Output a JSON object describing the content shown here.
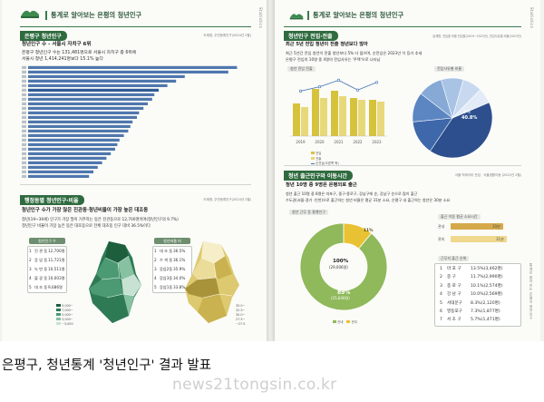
{
  "left_page": {
    "header_title": "통계로 알아보는 은평의 청년인구",
    "section1": {
      "title": "은평구 청년인구",
      "source": "도제명, 주민등록인구(2024년 2월)",
      "heading": "청년인구 수 - 서울시 자치구 6위",
      "lines": [
        "은평구 청년인구 수는 131,481명으로 서울시 자치구 중 6위에",
        "서울시 청년 1,414,241명보다 15.1% 높다"
      ],
      "bars": [
        96,
        92,
        72,
        68,
        64,
        60,
        58,
        57,
        55,
        53,
        51,
        50,
        48,
        47,
        46,
        44,
        42,
        41,
        40,
        38,
        36,
        34,
        32,
        30,
        28
      ],
      "bar_color": "#4f77ad",
      "highlight_color": "#2f5c96"
    },
    "section2": {
      "title": "행정동별 청년인구·비율",
      "source": "도제명, 주민등록인구(2024년 2월)",
      "heading": "청년인구 수가 가장 많은 진관동·청년비율이 가장 높은 대조동",
      "lines": [
        "청년(19~39세) 인구가 가장 많이 거주하는 동은 진관동으로 12,700명이며(청년인구의 9.7%)",
        "청년인구 비율이 가장 높은 동은 대조동으로 전체 대조동 인구 대비 36.5%이다"
      ],
      "ranking_headers": [
        "청년인구 수",
        "청년비율 비"
      ],
      "ranking_left": [
        {
          "n": "1",
          "name": "진 관 동",
          "val": "12,700명"
        },
        {
          "n": "2",
          "name": "응 암 동",
          "val": "11,721명"
        },
        {
          "n": "3",
          "name": "녹 번 동",
          "val": "10,511명"
        },
        {
          "n": "4",
          "name": "불 광 동",
          "val": "10,003명"
        },
        {
          "n": "5",
          "name": "대 조 동",
          "val": "9,686명"
        }
      ],
      "ranking_right": [
        {
          "n": "1",
          "name": "대 조 동",
          "val": "36.5%"
        },
        {
          "n": "2",
          "name": "수 색 동",
          "val": "36.1%"
        },
        {
          "n": "3",
          "name": "응암2동",
          "val": "35.9%"
        },
        {
          "n": "4",
          "name": "응암3동",
          "val": "34.0%"
        },
        {
          "n": "5",
          "name": "응암1동",
          "val": "33.8%"
        }
      ],
      "map_colors_green": [
        "#1d5e3c",
        "#2e7a55",
        "#4c9a74",
        "#86c1a2",
        "#c7e2d3"
      ],
      "map_colors_yellow": [
        "#a8923a",
        "#c9b24f",
        "#ddc96f",
        "#ebdc99",
        "#f5eec8"
      ]
    },
    "side_tab": "Statistics"
  },
  "right_page": {
    "header_title": "통계로 알아보는 은평의 청년인구",
    "section1": {
      "title": "청년인구 전입·전출",
      "source": "놀제명, 전입출 비율 전입출(2019~2023년), 전입사유별 비율(2023년)",
      "heading": "최근 5년 전입 청년이 전출 청년보다 많아",
      "lines": [
        "최근 5년간 전입 청년이 전출 청년보다 5% 더 많으며, 순전입은 2023년 이 등가 추세",
        "은평구 전입의 10명 중 4명의 전입사유는 '주택'으로 나타남"
      ],
      "chart_label_left": "청년 전입 전출",
      "chart_label_right": "전입사유별 비율",
      "years": [
        "2019",
        "2020",
        "2021",
        "2022",
        "2023"
      ],
      "in_values": [
        18,
        26,
        25,
        21,
        20
      ],
      "out_values": [
        16,
        21,
        22,
        20,
        19
      ],
      "net_line": [
        8,
        12,
        18,
        9,
        16
      ],
      "bar_in_color": "#d7c23c",
      "bar_out_color": "#e7d97a",
      "line_color": "#3c6fb0",
      "legend": [
        "전입",
        "전출",
        "순전입(오른쪽 축)"
      ],
      "pie_center": "주택",
      "pie_pct": "40.8%",
      "pie_slices": [
        40.8,
        14,
        12,
        10,
        9,
        8,
        6.2
      ],
      "pie_colors": [
        "#2d4f8e",
        "#3f68ab",
        "#5b86c2",
        "#86a9d6",
        "#a9c3e5",
        "#c8d9ef",
        "#e2ebf7"
      ]
    },
    "section2": {
      "title": "청년 출근인구와 이동시간",
      "source": "서울 빅데이터 전입 · 서울생활이동 (2022년 2월)",
      "heading": "청년 10명 중 9명은 은평외로 출근",
      "lines": [
        "청년 출근 10명 중 8명은 마포구, 중구·종로구, 강남구에 순, 강남구 순으로 많이 출근",
        "수도권(서울·경기 ·인천)으로 출근하는 청년 비율은 평균 31분 소요, 은평구 내 출근하는 청년은 30분 소요"
      ],
      "donut_title": "청년 근무 동 통행인구",
      "donut_label_main": "100%",
      "donut_label_main_sub": "(29,006명)",
      "donut_label_big": "89%",
      "donut_label_big_sub": "(25,840명)",
      "donut_label_small": "11%",
      "donut_values": [
        89,
        11
      ],
      "donut_colors": [
        "#8fb95a",
        "#e9c233"
      ],
      "donut_legend": [
        "관내",
        "관외"
      ],
      "commute_title": "출근 이동 평균 소요시간",
      "commute_bars": [
        {
          "label": "관내",
          "value": "30분"
        },
        {
          "label": "관외",
          "value": "31분"
        }
      ],
      "dest_title": "근무지 출근 순위",
      "dest_rows": [
        {
          "n": "1",
          "name": "마 포 구",
          "val": "13.5%(3,462명)"
        },
        {
          "n": "2",
          "name": "중 구",
          "val": "11.7%(2,990명)"
        },
        {
          "n": "3",
          "name": "종 로 구",
          "val": "10.1%(2,574명)"
        },
        {
          "n": "4",
          "name": "강 남 구",
          "val": "10.0%(2,569명)"
        },
        {
          "n": "5",
          "name": "서대문구",
          "val": "8.3%(2,120명)"
        },
        {
          "n": "6",
          "name": "영등포구",
          "val": "7.3%(1,877명)"
        },
        {
          "n": "7",
          "name": "서 초 구",
          "val": "5.7%(1,471명)"
        }
      ]
    },
    "side_tab_top": "Statistics",
    "side_tab_bottom": "통계로 알아보는 은평의 청년인구"
  },
  "caption": "은평구, 청년통계 '청년인구' 결과 발표",
  "watermark": "news21tongsin.co.kr"
}
